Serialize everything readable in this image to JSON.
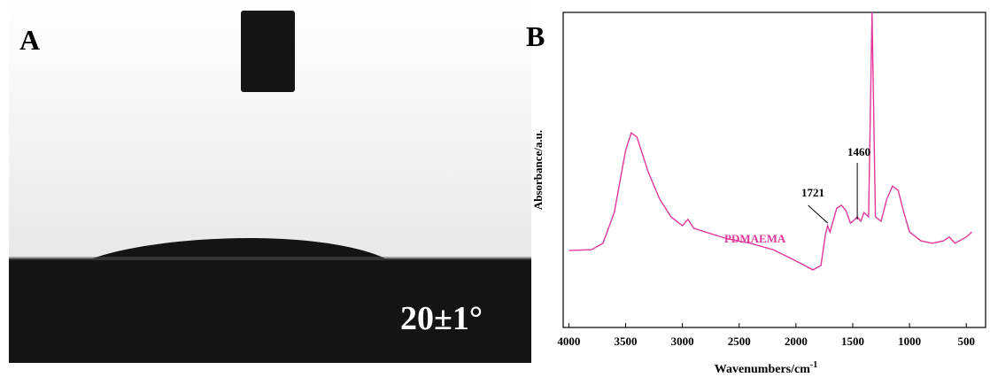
{
  "panel_a": {
    "label": "A",
    "angle_text": "20±1°"
  },
  "chart_data": {
    "type": "line",
    "panel_label": "B",
    "x_label": "Wavenumbers/cm",
    "x_label_sup": "-1",
    "y_label": "Absorbance/a.u.",
    "xlim": [
      4050,
      330
    ],
    "ylim": [
      0,
      100
    ],
    "xticks": [
      4000,
      3500,
      3000,
      2500,
      2000,
      1500,
      1000,
      500
    ],
    "x": [
      4000,
      3800,
      3700,
      3600,
      3500,
      3450,
      3400,
      3300,
      3200,
      3100,
      3000,
      2950,
      2900,
      2800,
      2600,
      2400,
      2200,
      2000,
      1850,
      1780,
      1740,
      1721,
      1700,
      1640,
      1600,
      1560,
      1520,
      1480,
      1460,
      1430,
      1400,
      1360,
      1330,
      1300,
      1250,
      1200,
      1150,
      1100,
      1050,
      1000,
      900,
      800,
      700,
      650,
      600,
      500,
      450
    ],
    "series": [
      {
        "name": "PDMAEMA",
        "color": "#e0389a",
        "values": [
          24.4,
          24.7,
          26.7,
          36.5,
          56.2,
          61.8,
          60.4,
          49.2,
          40.7,
          35.1,
          32.3,
          34.3,
          31.5,
          30.3,
          28.1,
          26.7,
          24.7,
          21.1,
          18.3,
          19.7,
          29.5,
          32.3,
          30.3,
          37.9,
          38.8,
          37.1,
          33.1,
          34.3,
          35.1,
          33.7,
          36.5,
          35.1,
          100,
          35.1,
          33.7,
          40.7,
          44.9,
          43.5,
          36.5,
          30.3,
          27.5,
          26.7,
          27.5,
          28.7,
          26.7,
          28.7,
          30.3
        ]
      }
    ],
    "annotations": [
      {
        "text": "1721",
        "x": 1721
      },
      {
        "text": "1460",
        "x": 1460
      }
    ]
  }
}
